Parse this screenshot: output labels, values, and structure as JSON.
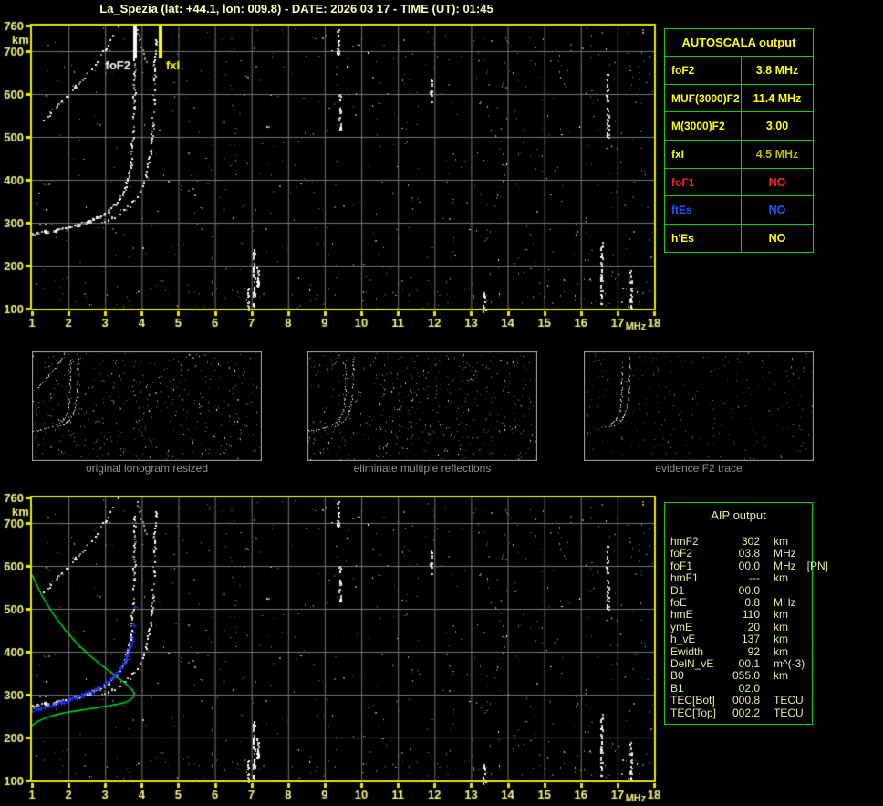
{
  "title": "La_Spezia (lat: +44.1, lon: 009.8) - DATE: 2026 03 17 - TIME (UT): 01:45",
  "colors": {
    "background": "#000000",
    "axis_text": "#f2f287",
    "plot_border": "#e8e800",
    "grid": "#767676",
    "trace_white": "#ffffff",
    "fof2_marker": "#ffffff",
    "fxi_marker": "#ffff00",
    "profile_green": "#00cc22",
    "scaled_blue": "#2233ee",
    "table_border": "#00d400",
    "yellow_value": "#ffff00",
    "dark_yellow_value": "#bdbd00",
    "red_value": "#ff2222",
    "blue_value": "#1a5cff",
    "aip_text": "#e8e89e",
    "caption_text": "#8f8f8f",
    "thumb_border": "#a8a8a8"
  },
  "autoscala_table": {
    "title": "AUTOSCALA output",
    "rows": [
      {
        "key": "foF2",
        "label": "foF2",
        "value": "3.8 MHz",
        "label_color": "#ffff00",
        "value_color": "#ffff00"
      },
      {
        "key": "MUF3000F2",
        "label": "MUF(3000)F2",
        "value": "11.4 MHz",
        "label_color": "#ffff00",
        "value_color": "#ffff00"
      },
      {
        "key": "M3000F2",
        "label": "M(3000)F2",
        "value": "3.00",
        "label_color": "#ffff00",
        "value_color": "#ffff00"
      },
      {
        "key": "fxI",
        "label": "fxI",
        "value": "4.5 MHz",
        "label_color": "#ffff00",
        "value_color": "#bdbd00"
      },
      {
        "key": "foF1",
        "label": "foF1",
        "value": "NO",
        "label_color": "#ff2222",
        "value_color": "#ff2222"
      },
      {
        "key": "ftEs",
        "label": "ftEs",
        "value": "NO",
        "label_color": "#1a5cff",
        "value_color": "#1a5cff"
      },
      {
        "key": "hEs",
        "label": "h'Es",
        "value": "NO",
        "label_color": "#ffff00",
        "value_color": "#ffff00"
      }
    ]
  },
  "thumbnails": [
    {
      "caption": "original ionogram resized"
    },
    {
      "caption": "eliminate multiple reflections"
    },
    {
      "caption": "evidence F2 trace"
    }
  ],
  "aip_table": {
    "title": "AIP output",
    "rows": [
      {
        "key": "hmF2",
        "name": "hmF2",
        "value": "302",
        "unit": "km",
        "extra": ""
      },
      {
        "key": "foF2",
        "name": "foF2",
        "value": "03.8",
        "unit": "MHz",
        "extra": ""
      },
      {
        "key": "foF1",
        "name": "foF1",
        "value": "00.0",
        "unit": "MHz",
        "extra": "[PN]"
      },
      {
        "key": "hmF1",
        "name": "hmF1",
        "value": "---",
        "unit": "km",
        "extra": ""
      },
      {
        "key": "D1",
        "name": "D1",
        "value": "00.0",
        "unit": "",
        "extra": ""
      },
      {
        "key": "foE",
        "name": "foE",
        "value": "0.8",
        "unit": "MHz",
        "extra": ""
      },
      {
        "key": "hmE",
        "name": "hmE",
        "value": "110",
        "unit": "km",
        "extra": ""
      },
      {
        "key": "ymE",
        "name": "ymE",
        "value": "20",
        "unit": "km",
        "extra": ""
      },
      {
        "key": "h_vE",
        "name": "h_vE",
        "value": "137",
        "unit": "km",
        "extra": ""
      },
      {
        "key": "Ewidth",
        "name": "Ewidth",
        "value": "92",
        "unit": "km",
        "extra": ""
      },
      {
        "key": "DelN_vE",
        "name": "DelN_vE",
        "value": "00.1",
        "unit": "m^(-3)",
        "extra": ""
      },
      {
        "key": "B0",
        "name": "B0",
        "value": "055.0",
        "unit": "km",
        "extra": ""
      },
      {
        "key": "B1",
        "name": "B1",
        "value": "02.0",
        "unit": "",
        "extra": ""
      },
      {
        "key": "TECBot",
        "name": "TEC[Bot]",
        "value": "000.8",
        "unit": "TECU",
        "extra": ""
      },
      {
        "key": "TECTop",
        "name": "TEC[Top]",
        "value": "002.2",
        "unit": "TECU",
        "extra": ""
      }
    ]
  },
  "chart_data": {
    "type": "scatter",
    "title": "Vertical incidence ionogram, La_Spezia, 2026-03-17 01:45 UT",
    "xlabel": "MHz",
    "ylabel": "km",
    "xlim": [
      1,
      18
    ],
    "ylim": [
      100,
      760
    ],
    "grid": true,
    "x_ticks": [
      1,
      2,
      3,
      4,
      5,
      6,
      7,
      8,
      9,
      10,
      11,
      12,
      13,
      14,
      15,
      16,
      17,
      18
    ],
    "y_ticks": [
      100,
      200,
      300,
      400,
      500,
      600,
      700,
      760
    ],
    "markers": [
      {
        "name": "foF2",
        "freq": 3.8,
        "label": "foF2",
        "color": "#ffffff",
        "label_side": "left"
      },
      {
        "name": "fxI",
        "freq": 4.5,
        "label": "fxI",
        "color": "#ffff00",
        "label_side": "right"
      }
    ],
    "series": [
      {
        "name": "F2 trace O-mode (virtual height km vs MHz)",
        "points": [
          [
            1.0,
            276
          ],
          [
            1.4,
            281
          ],
          [
            1.8,
            288
          ],
          [
            2.2,
            296
          ],
          [
            2.5,
            304
          ],
          [
            2.8,
            315
          ],
          [
            3.05,
            328
          ],
          [
            3.25,
            343
          ],
          [
            3.4,
            360
          ],
          [
            3.52,
            380
          ],
          [
            3.61,
            404
          ],
          [
            3.68,
            434
          ],
          [
            3.72,
            470
          ],
          [
            3.75,
            515
          ],
          [
            3.77,
            570
          ],
          [
            3.785,
            640
          ],
          [
            3.79,
            715
          ]
        ]
      },
      {
        "name": "F2 trace X-mode",
        "points": [
          [
            2.9,
            302
          ],
          [
            3.2,
            313
          ],
          [
            3.45,
            326
          ],
          [
            3.65,
            341
          ],
          [
            3.82,
            358
          ],
          [
            3.96,
            378
          ],
          [
            4.07,
            402
          ],
          [
            4.16,
            432
          ],
          [
            4.23,
            470
          ],
          [
            4.28,
            520
          ],
          [
            4.32,
            585
          ],
          [
            4.35,
            660
          ],
          [
            4.37,
            730
          ]
        ]
      },
      {
        "name": "second reflection O-mode",
        "points": [
          [
            1.3,
            540
          ],
          [
            1.5,
            558
          ],
          [
            1.7,
            576
          ],
          [
            1.95,
            597
          ],
          [
            2.2,
            620
          ],
          [
            2.45,
            644
          ],
          [
            2.7,
            670
          ],
          [
            2.95,
            700
          ],
          [
            3.15,
            728
          ],
          [
            3.3,
            752
          ],
          [
            3.35,
            760
          ]
        ]
      },
      {
        "name": "second reflection X-mode fragment",
        "points": [
          [
            3.84,
            757
          ],
          [
            3.93,
            728
          ],
          [
            4.02,
            702
          ],
          [
            4.12,
            678
          ]
        ]
      }
    ],
    "profile": {
      "name": "restored electron density profile (plasma frequency vs real height)",
      "color": "#00cc22",
      "points": [
        [
          1.0,
          580
        ],
        [
          1.25,
          535
        ],
        [
          1.55,
          492
        ],
        [
          1.9,
          452
        ],
        [
          2.25,
          418
        ],
        [
          2.6,
          390
        ],
        [
          2.95,
          366
        ],
        [
          3.25,
          346
        ],
        [
          3.5,
          330
        ],
        [
          3.66,
          318
        ],
        [
          3.76,
          309
        ],
        [
          3.8,
          302
        ],
        [
          3.76,
          293
        ],
        [
          3.68,
          287
        ],
        [
          3.55,
          282
        ],
        [
          3.35,
          278
        ],
        [
          3.1,
          274
        ],
        [
          2.8,
          270
        ],
        [
          2.5,
          266
        ],
        [
          2.2,
          262
        ],
        [
          1.9,
          258
        ],
        [
          1.6,
          252
        ],
        [
          1.35,
          245
        ],
        [
          1.15,
          237
        ],
        [
          1.02,
          229
        ],
        [
          1.0,
          227
        ]
      ]
    },
    "scaled_trace": {
      "name": "autoscaled F2 trace points",
      "color": "#2233ee",
      "points": [
        [
          1.0,
          264
        ],
        [
          1.2,
          268
        ],
        [
          1.4,
          272
        ],
        [
          1.6,
          277
        ],
        [
          1.8,
          282
        ],
        [
          2.0,
          288
        ],
        [
          2.2,
          294
        ],
        [
          2.4,
          301
        ],
        [
          2.6,
          308
        ],
        [
          2.8,
          316
        ],
        [
          3.0,
          326
        ],
        [
          3.15,
          336
        ],
        [
          3.3,
          348
        ],
        [
          3.42,
          361
        ],
        [
          3.52,
          375
        ],
        [
          3.6,
          390
        ],
        [
          3.67,
          407
        ],
        [
          3.72,
          425
        ]
      ],
      "extra_points": [
        [
          3.74,
          432
        ],
        [
          3.77,
          448
        ],
        [
          3.79,
          462
        ],
        [
          3.81,
          505
        ]
      ]
    },
    "noise_streaks": [
      {
        "f": 7.05,
        "h": [
          100,
          245
        ]
      },
      {
        "f": 7.15,
        "h": [
          150,
          215
        ]
      },
      {
        "f": 16.55,
        "h": [
          100,
          258
        ]
      },
      {
        "f": 16.72,
        "h": [
          495,
          648
        ]
      },
      {
        "f": 9.4,
        "h": [
          518,
          602
        ]
      },
      {
        "f": 9.35,
        "h": [
          690,
          755
        ]
      },
      {
        "f": 6.9,
        "h": [
          100,
          150
        ]
      },
      {
        "f": 13.35,
        "h": [
          92,
          140
        ]
      },
      {
        "f": 11.9,
        "h": [
          582,
          640
        ]
      },
      {
        "f": 17.35,
        "h": [
          100,
          190
        ]
      }
    ]
  }
}
